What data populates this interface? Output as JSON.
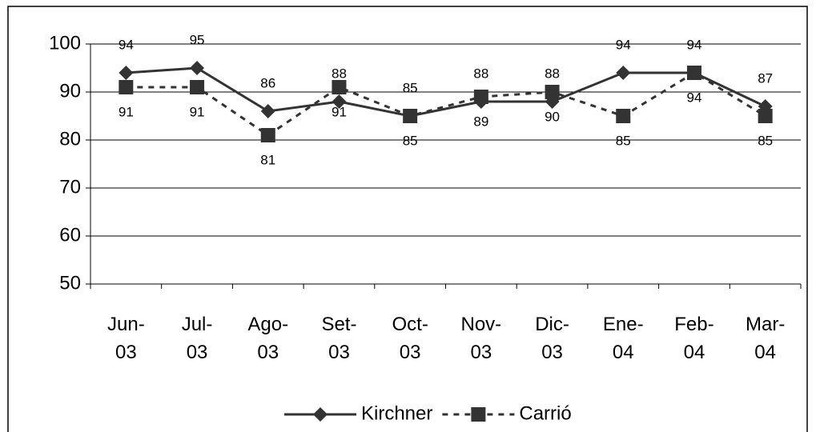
{
  "chart_data": {
    "type": "line",
    "categories": [
      "Jun-03",
      "Jul-03",
      "Ago-03",
      "Set-03",
      "Oct-03",
      "Nov-03",
      "Dic-03",
      "Ene-04",
      "Feb-04",
      "Mar-04"
    ],
    "series": [
      {
        "name": "Kirchner",
        "color": "#333333",
        "values": [
          94,
          95,
          86,
          88,
          85,
          88,
          88,
          94,
          94,
          87
        ]
      },
      {
        "name": "Carrió",
        "color": "#333333",
        "values": [
          91,
          91,
          81,
          91,
          85,
          89,
          90,
          85,
          94,
          85
        ]
      }
    ],
    "ylim": [
      50,
      100
    ],
    "yticks": [
      50,
      60,
      70,
      80,
      90,
      100
    ],
    "grid": true,
    "legend": "bottom"
  }
}
